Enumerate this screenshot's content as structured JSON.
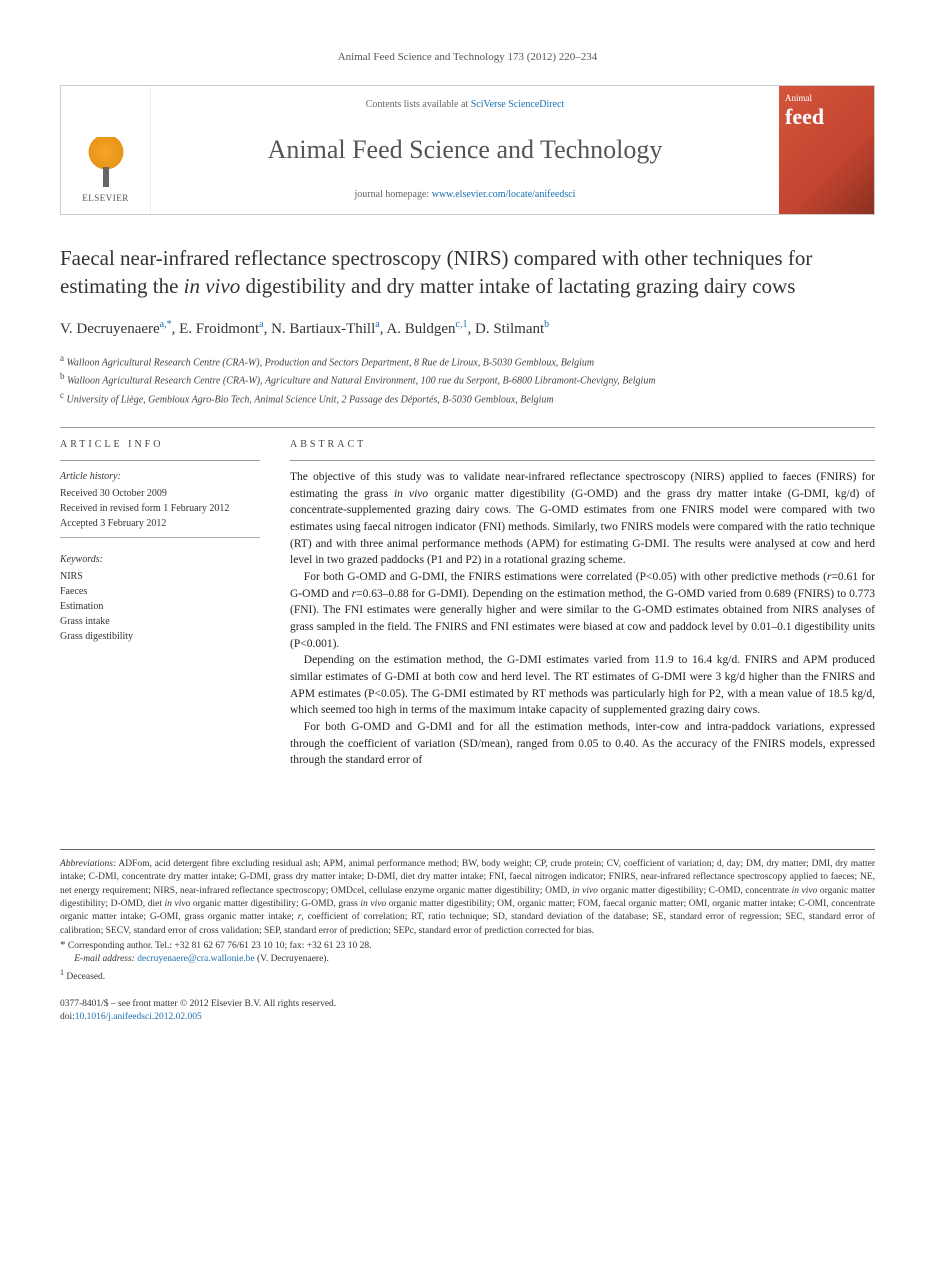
{
  "running_head": "Animal Feed Science and Technology 173 (2012) 220–234",
  "masthead": {
    "publisher": "ELSEVIER",
    "contents_prefix": "Contents lists available at ",
    "contents_link": "SciVerse ScienceDirect",
    "journal_name": "Animal Feed Science and Technology",
    "homepage_prefix": "journal homepage: ",
    "homepage_url": "www.elsevier.com/locate/anifeedsci",
    "cover_line1": "Animal",
    "cover_line2": "feed"
  },
  "title_html": "Faecal near-infrared reflectance spectroscopy (NIRS) compared with other techniques for estimating the <em>in vivo</em> digestibility and dry matter intake of lactating grazing dairy cows",
  "authors_html": "V. Decruyenaere<sup>a,*</sup>, E. Froidmont<sup>a</sup>, N. Bartiaux-Thill<sup>a</sup>, A. Buldgen<sup>c,1</sup>, D. Stilmant<sup>b</sup>",
  "affiliations": [
    {
      "sup": "a",
      "text": "Walloon Agricultural Research Centre (CRA-W), Production and Sectors Department, 8 Rue de Liroux, B-5030 Gembloux, Belgium"
    },
    {
      "sup": "b",
      "text": "Walloon Agricultural Research Centre (CRA-W), Agriculture and Natural Environment, 100 rue du Serpont, B-6800 Libramont-Chevigny, Belgium"
    },
    {
      "sup": "c",
      "text": "University of Liège, Gembloux Agro-Bio Tech, Animal Science Unit, 2 Passage des Déportés, B-5030 Gembloux, Belgium"
    }
  ],
  "article_info": {
    "heading": "article info",
    "history_head": "Article history:",
    "received": "Received 30 October 2009",
    "revised": "Received in revised form 1 February 2012",
    "accepted": "Accepted 3 February 2012",
    "keywords_head": "Keywords:",
    "keywords": [
      "NIRS",
      "Faeces",
      "Estimation",
      "Grass intake",
      "Grass digestibility"
    ]
  },
  "abstract": {
    "heading": "abstract",
    "paragraphs": [
      "The objective of this study was to validate near-infrared reflectance spectroscopy (NIRS) applied to faeces (FNIRS) for estimating the grass <em>in vivo</em> organic matter digestibility (G-OMD) and the grass dry matter intake (G-DMI, kg/d) of concentrate-supplemented grazing dairy cows. The G-OMD estimates from one FNIRS model were compared with two estimates using faecal nitrogen indicator (FNI) methods. Similarly, two FNIRS models were compared with the ratio technique (RT) and with three animal performance methods (APM) for estimating G-DMI. The results were analysed at cow and herd level in two grazed paddocks (P1 and P2) in a rotational grazing scheme.",
      "For both G-OMD and G-DMI, the FNIRS estimations were correlated (P<0.05) with other predictive methods (<em>r</em>=0.61 for G-OMD and <em>r</em>=0.63–0.88 for G-DMI). Depending on the estimation method, the G-OMD varied from 0.689 (FNIRS) to 0.773 (FNI). The FNI estimates were generally higher and were similar to the G-OMD estimates obtained from NIRS analyses of grass sampled in the field. The FNIRS and FNI estimates were biased at cow and paddock level by 0.01–0.1 digestibility units (P<0.001).",
      "Depending on the estimation method, the G-DMI estimates varied from 11.9 to 16.4 kg/d. FNIRS and APM produced similar estimates of G-DMI at both cow and herd level. The RT estimates of G-DMI were 3 kg/d higher than the FNIRS and APM estimates (P<0.05). The G-DMI estimated by RT methods was particularly high for P2, with a mean value of 18.5 kg/d, which seemed too high in terms of the maximum intake capacity of supplemented grazing dairy cows.",
      "For both G-OMD and G-DMI and for all the estimation methods, inter-cow and intra-paddock variations, expressed through the coefficient of variation (SD/mean), ranged from 0.05 to 0.40. As the accuracy of the FNIRS models, expressed through the standard error of"
    ]
  },
  "footnotes": {
    "abbrev_head": "Abbreviations:",
    "abbrev_html": "ADFom, acid detergent fibre excluding residual ash; APM, animal performance method; BW, body weight; CP, crude protein; CV, coefficient of variation; d, day; DM, dry matter; DMI, dry matter intake; C-DMI, concentrate dry matter intake; G-DMI, grass dry matter intake; D-DMI, diet dry matter intake; FNI, faecal nitrogen indicator; FNIRS, near-infrared reflectance spectroscopy applied to faeces; NE, net energy requirement; NIRS, near-infrared reflectance spectroscopy; OMDcel, cellulase enzyme organic matter digestibility; OMD, <em>in vivo</em> organic matter digestibility; C-OMD, concentrate <em>in vivo</em> organic matter digestibility; D-OMD, diet <em>in vivo</em> organic matter digestibility; G-OMD, grass <em>in vivo</em> organic matter digestibility; OM, organic matter; FOM, faecal organic matter; OMI, organic matter intake; C-OMI, concentrate organic matter intake; G-OMI, grass organic matter intake; <em>r</em>, coefficient of correlation; RT, ratio technique; SD, standard deviation of the database; SE, standard error of regression; SEC, standard error of calibration; SECV, standard error of cross validation; SEP, standard error of prediction; SEPc, standard error of prediction corrected for bias.",
    "corresponding": "Corresponding author. Tel.: +32 81 62 67 76/61 23 10 10; fax: +32 61 23 10 28.",
    "email_label": "E-mail address:",
    "email": "decruyenaere@cra.wallonie.be",
    "email_name": "(V. Decruyenaere).",
    "deceased": "Deceased."
  },
  "copyright": {
    "line1": "0377-8401/$ – see front matter © 2012 Elsevier B.V. All rights reserved.",
    "doi_label": "doi:",
    "doi": "10.1016/j.anifeedsci.2012.02.005"
  },
  "colors": {
    "link": "#1a6fb0",
    "text": "#1a1a1a",
    "cover_bg": "#c44530"
  }
}
